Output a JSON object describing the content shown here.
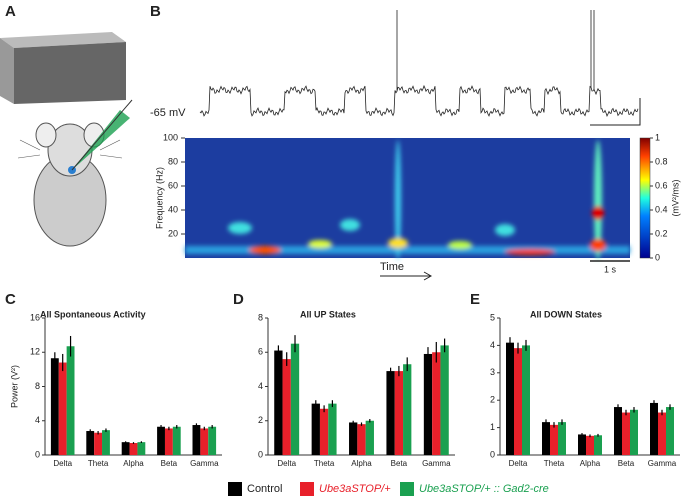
{
  "figure": {
    "panel_labels": [
      "A",
      "B",
      "C",
      "D",
      "E"
    ],
    "trace_label": "-65 mV",
    "time_label": "Time",
    "scale_label": "1 s"
  },
  "spectrogram": {
    "ylabel": "Frequency (Hz)",
    "ylim": [
      0,
      100
    ],
    "yticks": [
      20,
      40,
      60,
      80,
      100
    ],
    "clim": [
      0,
      1
    ],
    "cticks": [
      0,
      0.2,
      0.4,
      0.6,
      0.8,
      1
    ],
    "clabel": "(mV²/ms)"
  },
  "chart_data": [
    {
      "type": "bar",
      "title": "All Spontaneous Activity",
      "ylabel": "Power (V²)",
      "categories": [
        "Delta",
        "Theta",
        "Alpha",
        "Beta",
        "Gamma"
      ],
      "ylim": [
        0,
        16
      ],
      "yticks": [
        0,
        4,
        8,
        12,
        16
      ],
      "series": [
        {
          "name": "Control",
          "color": "#000000",
          "values": [
            11.3,
            2.8,
            1.5,
            3.3,
            3.5
          ],
          "errors": [
            0.7,
            0.2,
            0.1,
            0.2,
            0.2
          ]
        },
        {
          "name": "Ube3aSTOP/+",
          "color": "#e8202a",
          "values": [
            10.8,
            2.6,
            1.4,
            3.1,
            3.1
          ],
          "errors": [
            1.0,
            0.2,
            0.1,
            0.2,
            0.2
          ]
        },
        {
          "name": "Ube3aSTOP/+ :: Gad2-cre",
          "color": "#1aa050",
          "values": [
            12.7,
            2.9,
            1.5,
            3.3,
            3.3
          ],
          "errors": [
            1.2,
            0.2,
            0.1,
            0.2,
            0.2
          ]
        }
      ]
    },
    {
      "type": "bar",
      "title": "All UP States",
      "categories": [
        "Delta",
        "Theta",
        "Alpha",
        "Beta",
        "Gamma"
      ],
      "ylim": [
        0,
        8
      ],
      "yticks": [
        0,
        2,
        4,
        6,
        8
      ],
      "series": [
        {
          "color": "#000000",
          "values": [
            6.1,
            3.0,
            1.9,
            4.9,
            5.9
          ],
          "errors": [
            0.3,
            0.2,
            0.1,
            0.2,
            0.4
          ]
        },
        {
          "color": "#e8202a",
          "values": [
            5.6,
            2.7,
            1.8,
            4.9,
            6.0
          ],
          "errors": [
            0.4,
            0.2,
            0.1,
            0.3,
            0.6
          ]
        },
        {
          "color": "#1aa050",
          "values": [
            6.5,
            3.0,
            2.0,
            5.3,
            6.4
          ],
          "errors": [
            0.5,
            0.2,
            0.1,
            0.4,
            0.4
          ]
        }
      ]
    },
    {
      "type": "bar",
      "title": "All DOWN States",
      "categories": [
        "Delta",
        "Theta",
        "Alpha",
        "Beta",
        "Gamma"
      ],
      "ylim": [
        0,
        5
      ],
      "yticks": [
        0,
        1,
        2,
        3,
        4,
        5
      ],
      "series": [
        {
          "color": "#000000",
          "values": [
            4.1,
            1.2,
            0.75,
            1.75,
            1.9
          ],
          "errors": [
            0.2,
            0.1,
            0.05,
            0.1,
            0.1
          ]
        },
        {
          "color": "#e8202a",
          "values": [
            3.9,
            1.1,
            0.7,
            1.55,
            1.55
          ],
          "errors": [
            0.2,
            0.1,
            0.05,
            0.1,
            0.1
          ]
        },
        {
          "color": "#1aa050",
          "values": [
            4.0,
            1.2,
            0.72,
            1.65,
            1.75
          ],
          "errors": [
            0.2,
            0.1,
            0.05,
            0.1,
            0.1
          ]
        }
      ]
    }
  ]
}
